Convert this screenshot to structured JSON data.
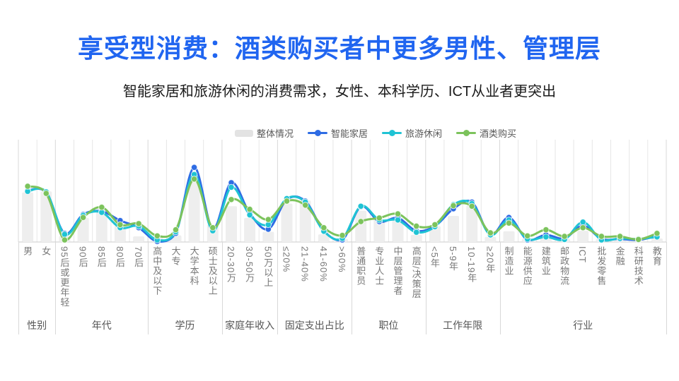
{
  "title": "享受型消费：酒类购买者中更多男性、管理层",
  "subtitle": "智能家居和旅游休闲的消费需求，女性、本科学历、ICT从业者更突出",
  "colors": {
    "title_accent": "#2065f0",
    "overall_bar": "#eeeeee",
    "smart_home_blue": "#2e6ce4",
    "travel_cyan": "#1fc3d4",
    "alcohol_green": "#7cc35c",
    "gridline": "#e6e6e6",
    "group_separator": "#d8d8d8",
    "axis_line": "#cccccc"
  },
  "legend": [
    {
      "label": "整体情况",
      "type": "bar",
      "color": "#e3e3e3"
    },
    {
      "label": "智能家居",
      "type": "line",
      "color": "#2e6ce4"
    },
    {
      "label": "旅游休闲",
      "type": "line",
      "color": "#1fc3d4"
    },
    {
      "label": "酒类购买",
      "type": "line",
      "color": "#7cc35c"
    }
  ],
  "chart_data": {
    "type": "bar",
    "note_type": "grouped category axis; gray bars = overall, three smooth lines overlaid",
    "grid": true,
    "legend_position": "top",
    "ylim": [
      0,
      100
    ],
    "y_axis_visible": false,
    "groups": [
      {
        "label": "性别",
        "categories": [
          "男",
          "女"
        ]
      },
      {
        "label": "年代",
        "categories": [
          "95后或更年轻",
          "90后",
          "85后",
          "80后",
          "70后"
        ]
      },
      {
        "label": "学历",
        "categories": [
          "高中及以下",
          "大专",
          "大学本科",
          "硕士及以上"
        ]
      },
      {
        "label": "家庭年收入",
        "categories": [
          "20-30万",
          "30-50万",
          "50万以上"
        ]
      },
      {
        "label": "固定支出占比",
        "categories": [
          "≤20%",
          "21-40%",
          "41-60%",
          ">60%"
        ]
      },
      {
        "label": "职位",
        "categories": [
          "普通职员",
          "专业人士",
          "中层管理者",
          "高层/决策层"
        ]
      },
      {
        "label": "工作年限",
        "categories": [
          "<5年",
          "5-9年",
          "10-19年",
          "≥20年"
        ]
      },
      {
        "label": "行业",
        "categories": [
          "制造业",
          "能源供应",
          "建筑业",
          "邮政物流",
          "ICT",
          "批发零售",
          "金融",
          "科研技术",
          "教育"
        ]
      }
    ],
    "categories": [
      "男",
      "女",
      "95后或更年轻",
      "90后",
      "85后",
      "80后",
      "70后",
      "高中及以下",
      "大专",
      "大学本科",
      "硕士及以上",
      "20-30万",
      "30-50万",
      "50万以上",
      "≤20%",
      "21-40%",
      "41-60%",
      ">60%",
      "普通职员",
      "专业人士",
      "中层管理者",
      "高层/决策层",
      "<5年",
      "5-9年",
      "10-19年",
      "≥20年",
      "制造业",
      "能源供应",
      "建筑业",
      "邮政物流",
      "ICT",
      "批发零售",
      "金融",
      "科研技术",
      "教育"
    ],
    "series": [
      {
        "name": "整体情况",
        "type": "bar",
        "color": "#eeeeee",
        "values": [
          48.5,
          49.5,
          6,
          23.5,
          32.5,
          16,
          5.5,
          6,
          6.5,
          59,
          17,
          35,
          23.5,
          10,
          37.5,
          40.5,
          7.5,
          3,
          30.5,
          22,
          23.5,
          7,
          15.5,
          25.5,
          35.5,
          5,
          10.5,
          3,
          7.5,
          3,
          11,
          3,
          4.5,
          2.5,
          3.5
        ]
      },
      {
        "name": "智能家居",
        "type": "line",
        "color": "#2e6ce4",
        "values": [
          50.5,
          48.5,
          8.5,
          27,
          30,
          21,
          14,
          0.5,
          8.5,
          73,
          13,
          58,
          28,
          12.5,
          41.5,
          40,
          11,
          2,
          34.5,
          20,
          23.5,
          11,
          15.5,
          32.5,
          39,
          7,
          24,
          2,
          7,
          3.5,
          16,
          3,
          3,
          2,
          6
        ]
      },
      {
        "name": "旅游休闲",
        "type": "line",
        "color": "#1fc3d4",
        "values": [
          49.5,
          49,
          7.5,
          26,
          29,
          14,
          15.5,
          2,
          10,
          66,
          11,
          53.5,
          26.5,
          17,
          42.5,
          39,
          10.5,
          3.5,
          35,
          21.5,
          21.5,
          9.5,
          15,
          36.5,
          37.5,
          7,
          21.5,
          3,
          5,
          2.5,
          19.5,
          2,
          3.5,
          3,
          5
        ]
      },
      {
        "name": "酒类购买",
        "type": "line",
        "color": "#7cc35c",
        "values": [
          54.5,
          47.5,
          2,
          24,
          34,
          17,
          18,
          6,
          12,
          61.5,
          14,
          41.5,
          32,
          22,
          40,
          36,
          14,
          6.5,
          20,
          23.5,
          27.5,
          15.5,
          17,
          35.5,
          35,
          9,
          18.5,
          6,
          12,
          5.5,
          14,
          5.5,
          5.5,
          2.5,
          8.5
        ]
      }
    ]
  }
}
